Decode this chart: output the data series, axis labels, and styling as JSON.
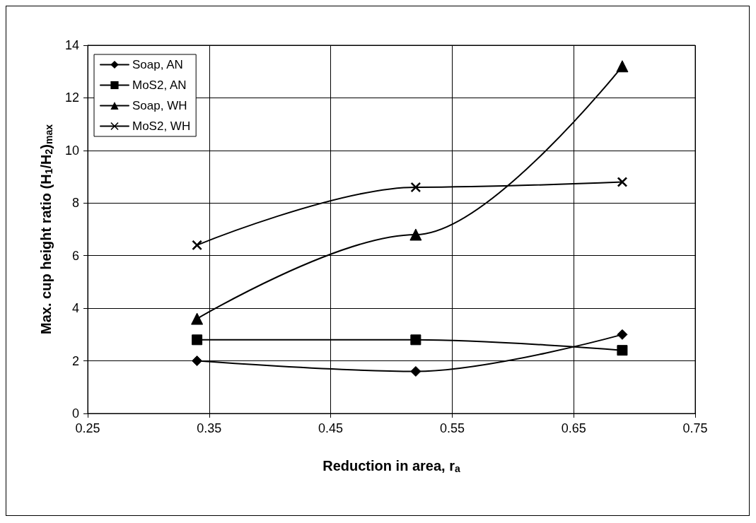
{
  "chart_data": {
    "type": "line",
    "xlabel": "Reduction in area, r$_{a}$",
    "ylabel": "Max. cup height ratio (H$_{1}$/H$_{2}$)$_{max}$",
    "xlim": [
      0.25,
      0.75
    ],
    "xticks": [
      0.25,
      0.35,
      0.45,
      0.55,
      0.65,
      0.75
    ],
    "ylim": [
      0,
      14
    ],
    "yticks": [
      0,
      2,
      4,
      6,
      8,
      10,
      12,
      14
    ],
    "grid": true,
    "legend": "top left",
    "line_style": "solid",
    "series": [
      {
        "name": "Soap, AN",
        "color": "#000000",
        "marker": "diamond",
        "x": [
          0.34,
          0.52,
          0.69
        ],
        "values": [
          2.0,
          1.6,
          3.0
        ]
      },
      {
        "name": "MoS2, AN",
        "color": "#000000",
        "marker": "square",
        "x": [
          0.34,
          0.52,
          0.69
        ],
        "values": [
          2.8,
          2.8,
          2.4
        ]
      },
      {
        "name": "Soap, WH",
        "color": "#000000",
        "marker": "triangle",
        "x": [
          0.34,
          0.52,
          0.69
        ],
        "values": [
          3.6,
          6.8,
          13.2
        ]
      },
      {
        "name": "MoS2, WH",
        "color": "#000000",
        "marker": "cross",
        "x": [
          0.34,
          0.52,
          0.69
        ],
        "values": [
          6.4,
          8.6,
          8.8
        ]
      }
    ]
  }
}
